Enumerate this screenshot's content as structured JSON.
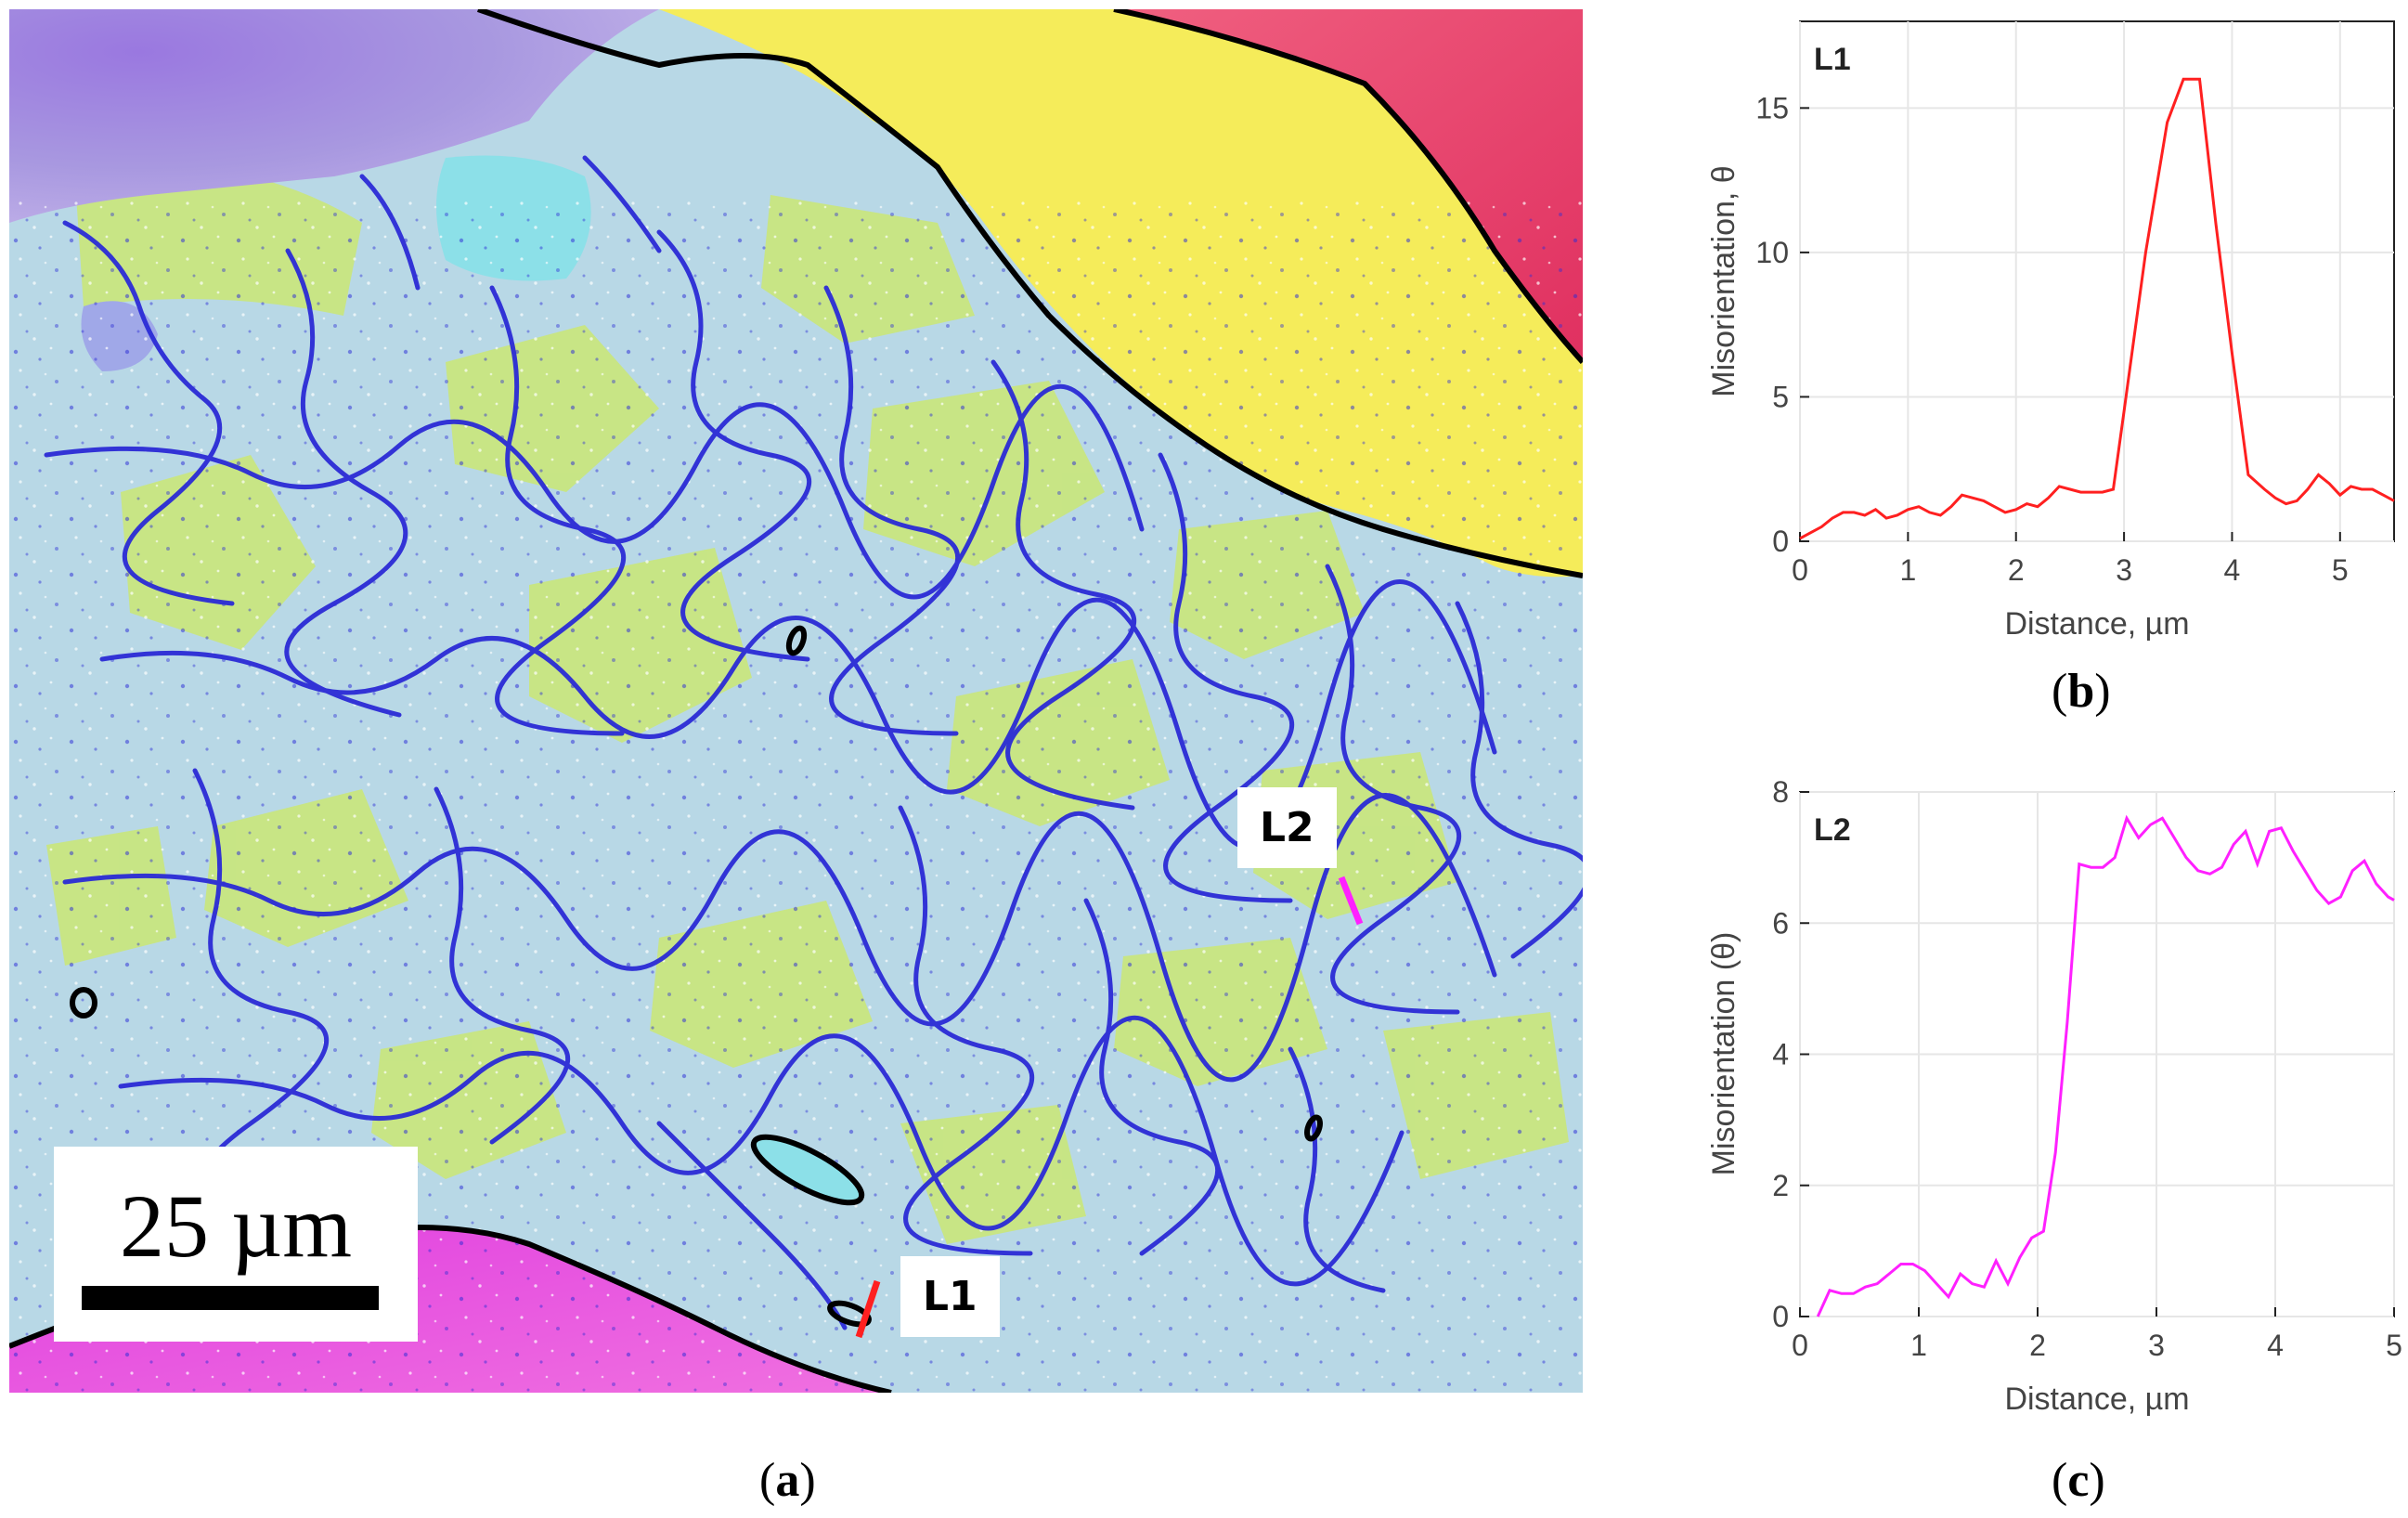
{
  "figure": {
    "panel_a": {
      "label": "a",
      "scale_bar": "25 µm",
      "line_labels": [
        "L2",
        "L1"
      ]
    },
    "panel_b": {
      "label": "b"
    },
    "panel_c": {
      "label": "c"
    }
  },
  "colors": {
    "l1": "#ff2020",
    "l2": "#ff20ff",
    "boundary_low": "#2b2bd6",
    "boundary_high": "#000000"
  },
  "chart_data": [
    {
      "type": "line",
      "title": "L1",
      "xlabel": "Distance, µm",
      "ylabel": "Misorientation, θ",
      "xlim": [
        0,
        5.5
      ],
      "ylim": [
        0,
        18
      ],
      "xticks": [
        0,
        1,
        2,
        3,
        4,
        5
      ],
      "yticks": [
        0,
        5,
        10,
        15
      ],
      "grid": true,
      "series": [
        {
          "color": "#ff2020",
          "x": [
            0,
            0.1,
            0.2,
            0.3,
            0.4,
            0.5,
            0.6,
            0.7,
            0.8,
            0.9,
            1.0,
            1.1,
            1.2,
            1.3,
            1.4,
            1.5,
            1.6,
            1.7,
            1.8,
            1.9,
            2.0,
            2.1,
            2.2,
            2.3,
            2.4,
            2.5,
            2.6,
            2.7,
            2.8,
            2.9,
            3.0,
            3.2,
            3.4,
            3.55,
            3.7,
            3.85,
            4.0,
            4.15,
            4.3,
            4.4,
            4.5,
            4.6,
            4.7,
            4.8,
            4.9,
            5.0,
            5.1,
            5.2,
            5.3,
            5.4,
            5.5
          ],
          "y": [
            0.1,
            0.3,
            0.5,
            0.8,
            1.0,
            1.0,
            0.9,
            1.1,
            0.8,
            0.9,
            1.1,
            1.2,
            1.0,
            0.9,
            1.2,
            1.6,
            1.5,
            1.4,
            1.2,
            1.0,
            1.1,
            1.3,
            1.2,
            1.5,
            1.9,
            1.8,
            1.7,
            1.7,
            1.7,
            1.8,
            4.5,
            10.0,
            14.5,
            16.0,
            16.0,
            11.0,
            6.5,
            2.3,
            1.8,
            1.5,
            1.3,
            1.4,
            1.8,
            2.3,
            2.0,
            1.6,
            1.9,
            1.8,
            1.8,
            1.6,
            1.4
          ]
        }
      ]
    },
    {
      "type": "line",
      "title": "L2",
      "xlabel": "Distance, µm",
      "ylabel": "Misorientation (θ)",
      "xlim": [
        0,
        5
      ],
      "ylim": [
        0,
        8
      ],
      "xticks": [
        0,
        1,
        2,
        3,
        4,
        5
      ],
      "yticks": [
        0,
        2,
        4,
        6,
        8
      ],
      "grid": true,
      "series": [
        {
          "color": "#ff20ff",
          "x": [
            0.15,
            0.25,
            0.35,
            0.45,
            0.55,
            0.65,
            0.75,
            0.85,
            0.95,
            1.05,
            1.15,
            1.25,
            1.35,
            1.45,
            1.55,
            1.65,
            1.75,
            1.85,
            1.95,
            2.05,
            2.15,
            2.25,
            2.35,
            2.45,
            2.55,
            2.65,
            2.75,
            2.85,
            2.95,
            3.05,
            3.15,
            3.25,
            3.35,
            3.45,
            3.55,
            3.65,
            3.75,
            3.85,
            3.95,
            4.05,
            4.15,
            4.25,
            4.35,
            4.45,
            4.55,
            4.65,
            4.75,
            4.85,
            4.95,
            5.0
          ],
          "y": [
            0.0,
            0.4,
            0.35,
            0.35,
            0.45,
            0.5,
            0.65,
            0.8,
            0.8,
            0.7,
            0.5,
            0.3,
            0.65,
            0.5,
            0.45,
            0.85,
            0.5,
            0.9,
            1.2,
            1.3,
            2.5,
            4.5,
            6.9,
            6.85,
            6.85,
            7.0,
            7.6,
            7.3,
            7.5,
            7.6,
            7.3,
            7.0,
            6.8,
            6.75,
            6.85,
            7.2,
            7.4,
            6.9,
            7.4,
            7.45,
            7.1,
            6.8,
            6.5,
            6.3,
            6.4,
            6.8,
            6.95,
            6.6,
            6.4,
            6.35
          ]
        }
      ]
    }
  ]
}
